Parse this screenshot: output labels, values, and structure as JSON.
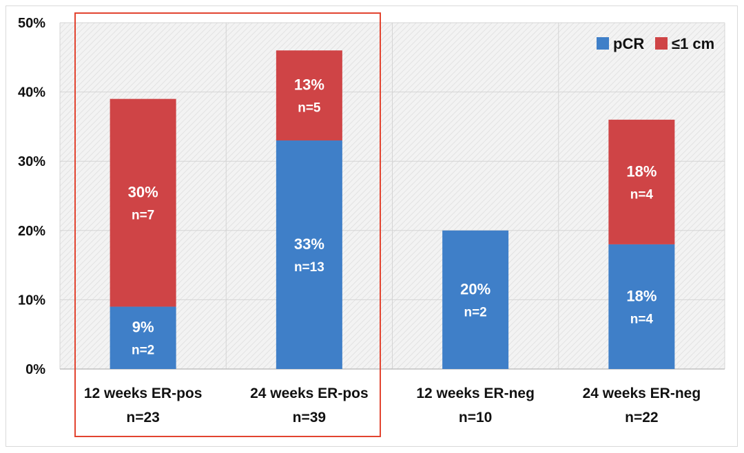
{
  "chart_data": {
    "type": "bar",
    "stacked": true,
    "categories": [
      "12 weeks ER-pos",
      "24 weeks ER-pos",
      "12 weeks ER-neg",
      "24 weeks ER-neg"
    ],
    "category_n": [
      "n=23",
      "n=39",
      "n=10",
      "n=22"
    ],
    "series": [
      {
        "name": "pCR",
        "color": "#3f7fc8",
        "values": [
          9,
          33,
          20,
          18
        ],
        "value_labels": [
          "9%",
          "33%",
          "20%",
          "18%"
        ],
        "n_labels": [
          "n=2",
          "n=13",
          "n=2",
          "n=4"
        ]
      },
      {
        "name": "≤1 cm",
        "color": "#cf4446",
        "values": [
          30,
          13,
          0,
          18
        ],
        "value_labels": [
          "30%",
          "13%",
          "",
          "18%"
        ],
        "n_labels": [
          "n=7",
          "n=5",
          "",
          "n=4"
        ]
      }
    ],
    "ylim": [
      0,
      50
    ],
    "yticks": [
      0,
      10,
      20,
      30,
      40,
      50
    ],
    "ytick_labels": [
      "0%",
      "10%",
      "20%",
      "30%",
      "40%",
      "50%"
    ],
    "title": "",
    "xlabel": "",
    "ylabel": "",
    "grid": true,
    "legend_position": "top-right",
    "highlight": {
      "categories": [
        "12 weeks ER-pos",
        "24 weeks ER-pos"
      ],
      "color": "#e2432f"
    }
  }
}
